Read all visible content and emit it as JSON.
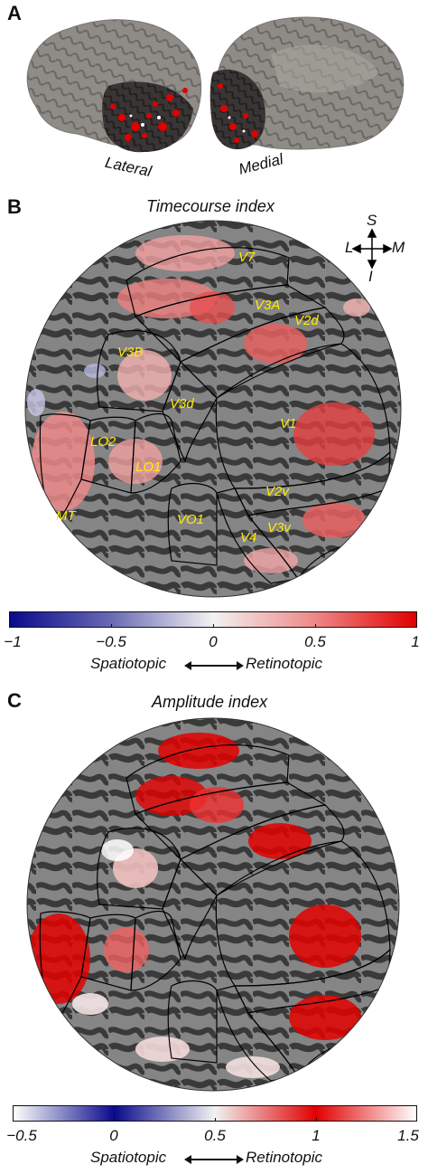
{
  "panel_a": {
    "label": "A",
    "lateral_label": "Lateral",
    "medial_label": "Medial"
  },
  "panel_b": {
    "label": "B",
    "title": "Timecourse index",
    "orientation": {
      "superior": "S",
      "lateral": "L",
      "medial": "M",
      "inferior": "I"
    },
    "regions": [
      "V7",
      "V3A",
      "V2d",
      "V3B",
      "V3d",
      "V1",
      "LO2",
      "LO1",
      "MT",
      "VO1",
      "V2v",
      "V4",
      "V3v"
    ],
    "colorbar": {
      "ticks": [
        "−1",
        "−0.5",
        "0",
        "0.5",
        "1"
      ],
      "left_label": "Spatiotopic",
      "right_label": "Retinotopic",
      "min": -1,
      "max": 1
    }
  },
  "panel_c": {
    "label": "C",
    "title": "Amplitude index",
    "colorbar": {
      "ticks": [
        "−0.5",
        "0",
        "0.5",
        "1",
        "1.5"
      ],
      "left_label": "Spatiotopic",
      "right_label": "Retinotopic",
      "min": -0.5,
      "max": 1.5
    }
  },
  "colors": {
    "negative": "#0a0a8c",
    "neutral": "#f2f2f2",
    "positive": "#e10000",
    "cortex_dark": "#3a3a3a",
    "cortex_light": "#8c8c8c",
    "background": "#ffffff",
    "region_label": "#ffeb00"
  }
}
